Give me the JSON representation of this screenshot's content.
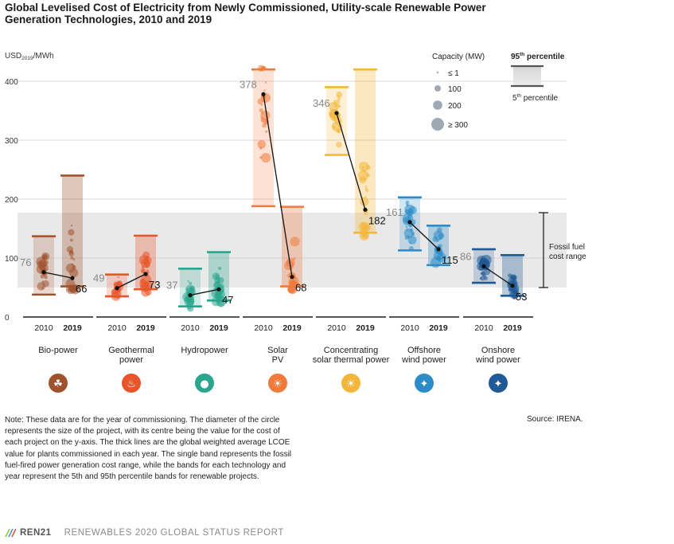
{
  "title": "Global Levelised Cost of Electricity from Newly Commissioned, Utility-scale Renewable Power Generation Technologies, 2010 and 2019",
  "note": "Note: These data are for the year of commissioning. The diameter of the circle represents the size of the project, with its centre being the value for the cost of each project on the y-axis. The thick lines are the global weighted average LCOE value for plants commissioned in each year. The single band represents the fossil fuel-fired power generation cost range, while the bands for each technology and year represent the 5th and 95th percentile bands for renewable projects.",
  "source": "Source: IRENA.",
  "footer": {
    "brand": "REN21",
    "report": "RENEWABLES 2020 GLOBAL STATUS REPORT"
  },
  "colors": {
    "fossil_band": "#e9e9e9",
    "grid": "#cccccc",
    "axis": "#555555",
    "avg_label_2010": "#888888",
    "avg_label_2019": "#111111"
  },
  "chart_data": {
    "type": "scatter",
    "title": "Global Levelised Cost of Electricity from Newly Commissioned, Utility-scale Renewable Power Generation Technologies, 2010 and 2019",
    "ylabel_main": "USD",
    "ylabel_sub": "2019",
    "ylabel_unit": "/MWh",
    "ylim": [
      0,
      420
    ],
    "yticks": [
      0,
      100,
      200,
      300,
      400
    ],
    "grid": true,
    "fossil_fuel_range": [
      50,
      177
    ],
    "fossil_label": [
      "Fossil fuel",
      "cost range"
    ],
    "legend": {
      "capacity_title": "Capacity (MW)",
      "capacity_items": [
        {
          "label": "≤ 1",
          "size": 1
        },
        {
          "label": "100",
          "size": 100
        },
        {
          "label": "200",
          "size": 200
        },
        {
          "label": "≥ 300",
          "size": 300
        }
      ],
      "percentile_top_label": "95",
      "percentile_top_sup": "th",
      "percentile_top_suffix": " percentile",
      "percentile_bottom_label": "5",
      "percentile_bottom_sup": "th",
      "percentile_bottom_suffix": " percentile"
    },
    "technologies": [
      {
        "name": "Bio-power",
        "label_lines": [
          "Bio-power"
        ],
        "color": "#a0522d",
        "icon": "leaf-icon",
        "icon_glyph": "☘",
        "years": [
          {
            "year": "2010",
            "p5": 38,
            "p95": 137,
            "avg": 76,
            "avg_label": "76"
          },
          {
            "year": "2019",
            "p5": 52,
            "p95": 240,
            "avg": 66,
            "avg_label": "66"
          }
        ]
      },
      {
        "name": "Geothermal power",
        "label_lines": [
          "Geothermal",
          "power"
        ],
        "color": "#e8552a",
        "icon": "geothermal-icon",
        "icon_glyph": "♨",
        "years": [
          {
            "year": "2010",
            "p5": 35,
            "p95": 72,
            "avg": 49,
            "avg_label": "49"
          },
          {
            "year": "2019",
            "p5": 47,
            "p95": 138,
            "avg": 73,
            "avg_label": "73"
          }
        ]
      },
      {
        "name": "Hydropower",
        "label_lines": [
          "Hydropower"
        ],
        "color": "#2aa58e",
        "icon": "water-drop-icon",
        "icon_glyph": "●",
        "years": [
          {
            "year": "2010",
            "p5": 18,
            "p95": 82,
            "avg": 37,
            "avg_label": "37"
          },
          {
            "year": "2019",
            "p5": 28,
            "p95": 110,
            "avg": 47,
            "avg_label": "47"
          }
        ]
      },
      {
        "name": "Solar PV",
        "label_lines": [
          "Solar",
          "PV"
        ],
        "color": "#f07a3a",
        "icon": "sun-icon",
        "icon_glyph": "☀",
        "years": [
          {
            "year": "2010",
            "p5": 188,
            "p95": 420,
            "avg": 378,
            "avg_label": "378"
          },
          {
            "year": "2019",
            "p5": 52,
            "p95": 187,
            "avg": 68,
            "avg_label": "68"
          }
        ]
      },
      {
        "name": "Concentrating solar thermal power",
        "label_lines": [
          "Concentrating",
          "solar thermal power"
        ],
        "color": "#f4b63a",
        "icon": "sun-icon",
        "icon_glyph": "☀",
        "years": [
          {
            "year": "2010",
            "p5": 275,
            "p95": 390,
            "avg": 346,
            "avg_label": "346"
          },
          {
            "year": "2019",
            "p5": 143,
            "p95": 420,
            "avg": 182,
            "avg_label": "182"
          }
        ]
      },
      {
        "name": "Offshore wind power",
        "label_lines": [
          "Offshore",
          "wind power"
        ],
        "color": "#2c8cc8",
        "icon": "wind-turbine-icon",
        "icon_glyph": "✦",
        "years": [
          {
            "year": "2010",
            "p5": 113,
            "p95": 203,
            "avg": 161,
            "avg_label": "161"
          },
          {
            "year": "2019",
            "p5": 88,
            "p95": 155,
            "avg": 115,
            "avg_label": "115"
          }
        ]
      },
      {
        "name": "Onshore wind power",
        "label_lines": [
          "Onshore",
          "wind power"
        ],
        "color": "#1f5a96",
        "icon": "wind-turbine-icon",
        "icon_glyph": "✦",
        "years": [
          {
            "year": "2010",
            "p5": 58,
            "p95": 115,
            "avg": 86,
            "avg_label": "86"
          },
          {
            "year": "2019",
            "p5": 36,
            "p95": 105,
            "avg": 53,
            "avg_label": "53"
          }
        ]
      }
    ]
  }
}
